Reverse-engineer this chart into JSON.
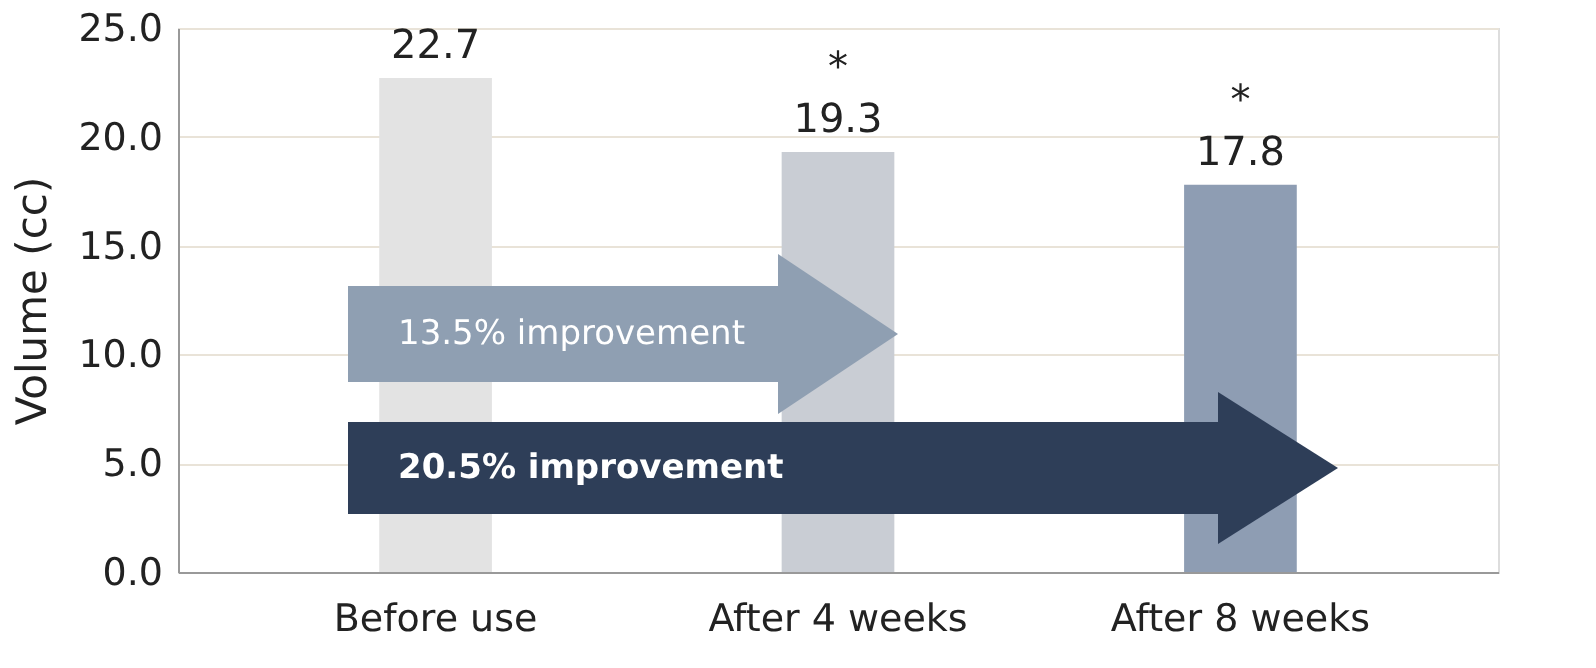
{
  "chart_data": {
    "type": "bar",
    "ylabel": "Volume (cc)",
    "categories": [
      "Before use",
      "After 4 weeks",
      "After 8 weeks"
    ],
    "values": [
      22.7,
      19.3,
      17.8
    ],
    "colors": [
      "#e3e3e3",
      "#c9cdd4",
      "#8e9db3"
    ],
    "ylim": [
      0,
      25
    ],
    "yticks": [
      {
        "value": 0,
        "label": "0.0"
      },
      {
        "value": 5,
        "label": "5.0"
      },
      {
        "value": 10,
        "label": "10.0"
      },
      {
        "value": 15,
        "label": "15.0"
      },
      {
        "value": 20,
        "label": "20.0"
      },
      {
        "value": 25,
        "label": "25.0"
      }
    ],
    "grid": "y",
    "legend": false,
    "data_labels": true,
    "annotations": [
      {
        "text": "*",
        "x": "After 4 weeks",
        "y": 19.3
      },
      {
        "text": "*",
        "x": "After 8 weeks",
        "y": 17.8
      },
      "13.5% improvement",
      "20.5% improvement"
    ]
  }
}
